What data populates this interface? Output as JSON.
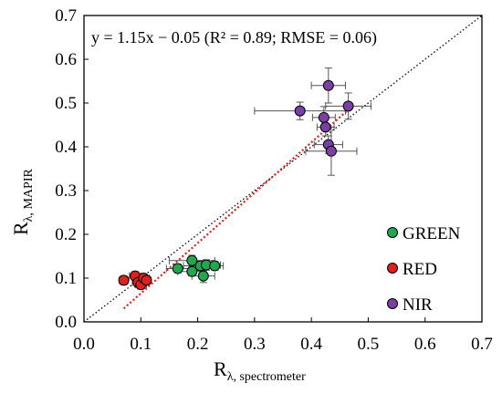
{
  "chart_data": {
    "type": "scatter",
    "xlabel": {
      "main": "R",
      "sub": "λ, spectrometer"
    },
    "ylabel": {
      "main": "R",
      "sub": "λ, MAPIR"
    },
    "xlim": [
      0.0,
      0.7
    ],
    "ylim": [
      0.0,
      0.7
    ],
    "xticks": [
      "0.0",
      "0.1",
      "0.2",
      "0.3",
      "0.4",
      "0.5",
      "0.6",
      "0.7"
    ],
    "yticks": [
      "0.0",
      "0.1",
      "0.2",
      "0.3",
      "0.4",
      "0.5",
      "0.6",
      "0.7"
    ],
    "grid": false,
    "legend_position": "bottom-right",
    "annotation": "y = 1.15x − 0.05 (R² = 0.89; RMSE = 0.06)",
    "reference_line": {
      "style": "dotted",
      "color": "#000000",
      "points": [
        [
          0.0,
          0.0
        ],
        [
          0.7,
          0.7
        ]
      ]
    },
    "fit_line": {
      "style": "dotted",
      "color": "#e0201b",
      "slope": 1.15,
      "intercept": -0.05,
      "x_range": [
        0.07,
        0.47
      ]
    },
    "series": [
      {
        "name": "GREEN",
        "color": "#1fa84f",
        "points": [
          {
            "x": 0.165,
            "y": 0.122,
            "xerr": 0.02,
            "yerr": 0.01
          },
          {
            "x": 0.19,
            "y": 0.14,
            "xerr": 0.04,
            "yerr": 0.012
          },
          {
            "x": 0.19,
            "y": 0.115,
            "xerr": 0.025,
            "yerr": 0.01
          },
          {
            "x": 0.205,
            "y": 0.128,
            "xerr": 0.03,
            "yerr": 0.01
          },
          {
            "x": 0.21,
            "y": 0.105,
            "xerr": 0.02,
            "yerr": 0.015
          },
          {
            "x": 0.215,
            "y": 0.13,
            "xerr": 0.025,
            "yerr": 0.012
          },
          {
            "x": 0.23,
            "y": 0.128,
            "xerr": 0.015,
            "yerr": 0.01
          }
        ]
      },
      {
        "name": "RED",
        "color": "#e0201b",
        "points": [
          {
            "x": 0.07,
            "y": 0.095,
            "xerr": 0.008,
            "yerr": 0.01
          },
          {
            "x": 0.09,
            "y": 0.105,
            "xerr": 0.01,
            "yerr": 0.01
          },
          {
            "x": 0.095,
            "y": 0.09,
            "xerr": 0.01,
            "yerr": 0.01
          },
          {
            "x": 0.1,
            "y": 0.085,
            "xerr": 0.01,
            "yerr": 0.01
          },
          {
            "x": 0.105,
            "y": 0.1,
            "xerr": 0.01,
            "yerr": 0.01
          },
          {
            "x": 0.11,
            "y": 0.095,
            "xerr": 0.008,
            "yerr": 0.01
          }
        ]
      },
      {
        "name": "NIR",
        "color": "#7b3fa5",
        "points": [
          {
            "x": 0.38,
            "y": 0.482,
            "xerr": 0.08,
            "yerr": 0.02
          },
          {
            "x": 0.422,
            "y": 0.467,
            "xerr": 0.02,
            "yerr": 0.025
          },
          {
            "x": 0.425,
            "y": 0.445,
            "xerr": 0.015,
            "yerr": 0.02
          },
          {
            "x": 0.43,
            "y": 0.54,
            "xerr": 0.03,
            "yerr": 0.04
          },
          {
            "x": 0.43,
            "y": 0.405,
            "xerr": 0.025,
            "yerr": 0.02
          },
          {
            "x": 0.435,
            "y": 0.39,
            "xerr": 0.045,
            "yerr": 0.055
          },
          {
            "x": 0.465,
            "y": 0.493,
            "xerr": 0.04,
            "yerr": 0.03
          }
        ]
      }
    ]
  }
}
